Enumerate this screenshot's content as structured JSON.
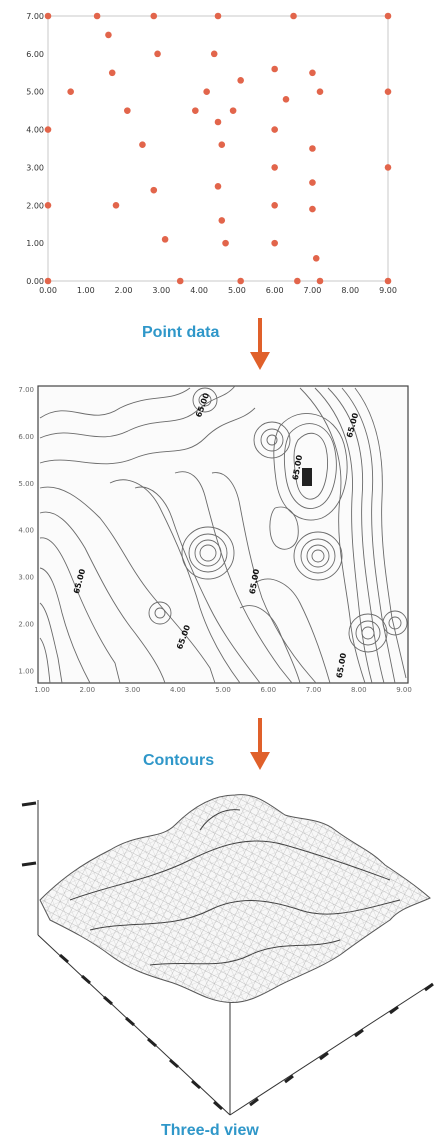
{
  "accent_color": "#2f97c9",
  "arrow_color": "#e0602a",
  "point_color": "#e2654b",
  "captions": {
    "point_data": "Point data",
    "contours": "Contours",
    "three_d": "Three-d view"
  },
  "chart_data": [
    {
      "type": "scatter",
      "x_ticks": [
        "0.00",
        "1.00",
        "2.00",
        "3.00",
        "4.00",
        "5.00",
        "6.00",
        "7.00",
        "8.00",
        "9.00"
      ],
      "y_ticks": [
        "0.00",
        "1.00",
        "2.00",
        "3.00",
        "4.00",
        "5.00",
        "6.00",
        "7.00"
      ],
      "xlim": [
        0,
        9
      ],
      "ylim": [
        0,
        7
      ],
      "grid": false,
      "points": [
        [
          0.0,
          7.0
        ],
        [
          1.3,
          7.0
        ],
        [
          2.8,
          7.0
        ],
        [
          4.5,
          7.0
        ],
        [
          6.5,
          7.0
        ],
        [
          9.0,
          7.0
        ],
        [
          1.6,
          6.5
        ],
        [
          2.9,
          6.0
        ],
        [
          4.4,
          6.0
        ],
        [
          6.0,
          5.6
        ],
        [
          7.0,
          5.5
        ],
        [
          1.7,
          5.5
        ],
        [
          5.1,
          5.3
        ],
        [
          0.6,
          5.0
        ],
        [
          4.2,
          5.0
        ],
        [
          6.3,
          4.8
        ],
        [
          7.2,
          5.0
        ],
        [
          9.0,
          5.0
        ],
        [
          2.1,
          4.5
        ],
        [
          3.9,
          4.5
        ],
        [
          4.9,
          4.5
        ],
        [
          4.5,
          4.2
        ],
        [
          0.0,
          4.0
        ],
        [
          6.0,
          4.0
        ],
        [
          2.5,
          3.6
        ],
        [
          4.6,
          3.6
        ],
        [
          7.0,
          3.5
        ],
        [
          6.0,
          3.0
        ],
        [
          9.0,
          3.0
        ],
        [
          4.5,
          2.5
        ],
        [
          2.8,
          2.4
        ],
        [
          7.0,
          2.6
        ],
        [
          0.0,
          2.0
        ],
        [
          1.8,
          2.0
        ],
        [
          6.0,
          2.0
        ],
        [
          7.0,
          1.9
        ],
        [
          4.6,
          1.6
        ],
        [
          3.1,
          1.1
        ],
        [
          4.7,
          1.0
        ],
        [
          6.0,
          1.0
        ],
        [
          7.1,
          0.6
        ],
        [
          0.0,
          0.0
        ],
        [
          3.5,
          0.0
        ],
        [
          5.1,
          0.0
        ],
        [
          6.6,
          0.0
        ],
        [
          7.2,
          0.0
        ],
        [
          9.0,
          0.0
        ]
      ]
    },
    {
      "type": "contour",
      "x_ticks": [
        "1.00",
        "2.00",
        "3.00",
        "4.00",
        "5.00",
        "6.00",
        "7.00",
        "8.00",
        "9.00"
      ],
      "y_ticks": [
        "1.00",
        "2.00",
        "3.00",
        "4.00",
        "5.00",
        "6.00",
        "7.00"
      ],
      "contour_labels": [
        "65.00",
        "65.00",
        "65.00",
        "65.00",
        "65.00",
        "65.00",
        "65.00"
      ]
    }
  ]
}
